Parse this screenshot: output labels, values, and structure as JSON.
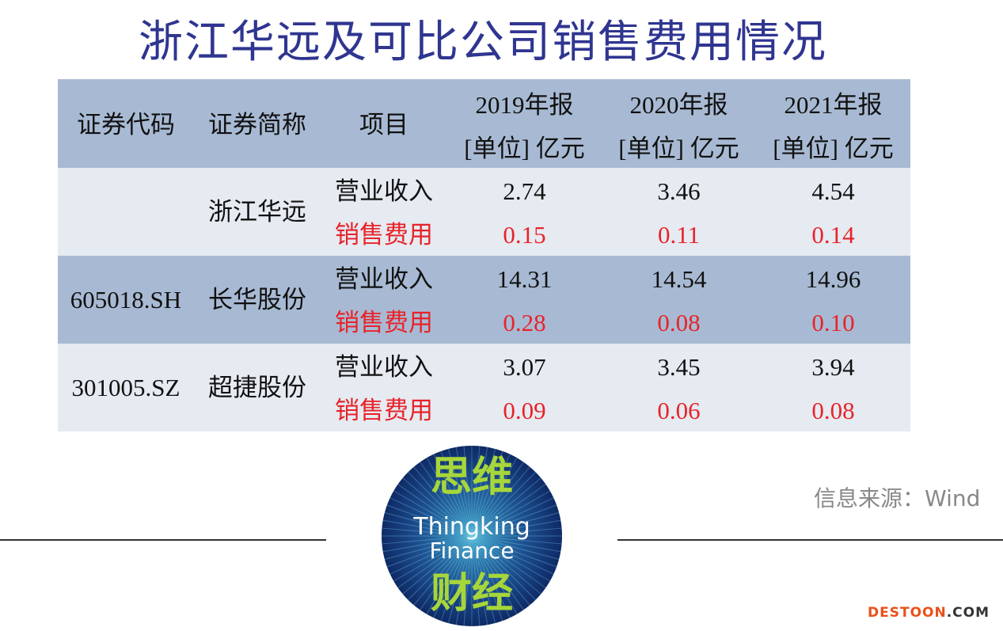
{
  "header": {
    "title": "浙江华远及可比公司销售费用情况"
  },
  "table": {
    "columns": [
      [
        "证券代码"
      ],
      [
        "证券简称"
      ],
      [
        "项目"
      ],
      [
        "2019年报",
        "[单位] 亿元"
      ],
      [
        "2020年报",
        "[单位] 亿元"
      ],
      [
        "2021年报",
        "[单位] 亿元"
      ]
    ],
    "rows": [
      {
        "name": "浙江华远",
        "items": [
          {
            "label": "营业收入",
            "values": [
              "2.74",
              "3.46",
              "4.54"
            ]
          },
          {
            "label": "销售费用",
            "values": [
              "0.15",
              "0.11",
              "0.14"
            ]
          }
        ]
      },
      {
        "code": "605018.SH",
        "name": "长华股份",
        "items": [
          {
            "label": "营业收入",
            "values": [
              "14.31",
              "14.54",
              "14.96"
            ]
          },
          {
            "label": "销售费用",
            "values": [
              "0.28",
              "0.08",
              "0.10"
            ]
          }
        ]
      },
      {
        "code": "301005.SZ",
        "name": "超捷股份",
        "items": [
          {
            "label": "营业收入",
            "values": [
              "3.07",
              "3.45",
              "3.94"
            ]
          },
          {
            "label": "销售费用",
            "values": [
              "0.09",
              "0.06",
              "0.08"
            ]
          }
        ]
      }
    ]
  },
  "logo": {
    "top": "思维",
    "line1": "Thingking",
    "line2": "Finance",
    "bottom": "财经"
  },
  "source": "信息来源：Wind",
  "watermark": {
    "main": "DESTOON",
    "suffix": ".COM"
  }
}
